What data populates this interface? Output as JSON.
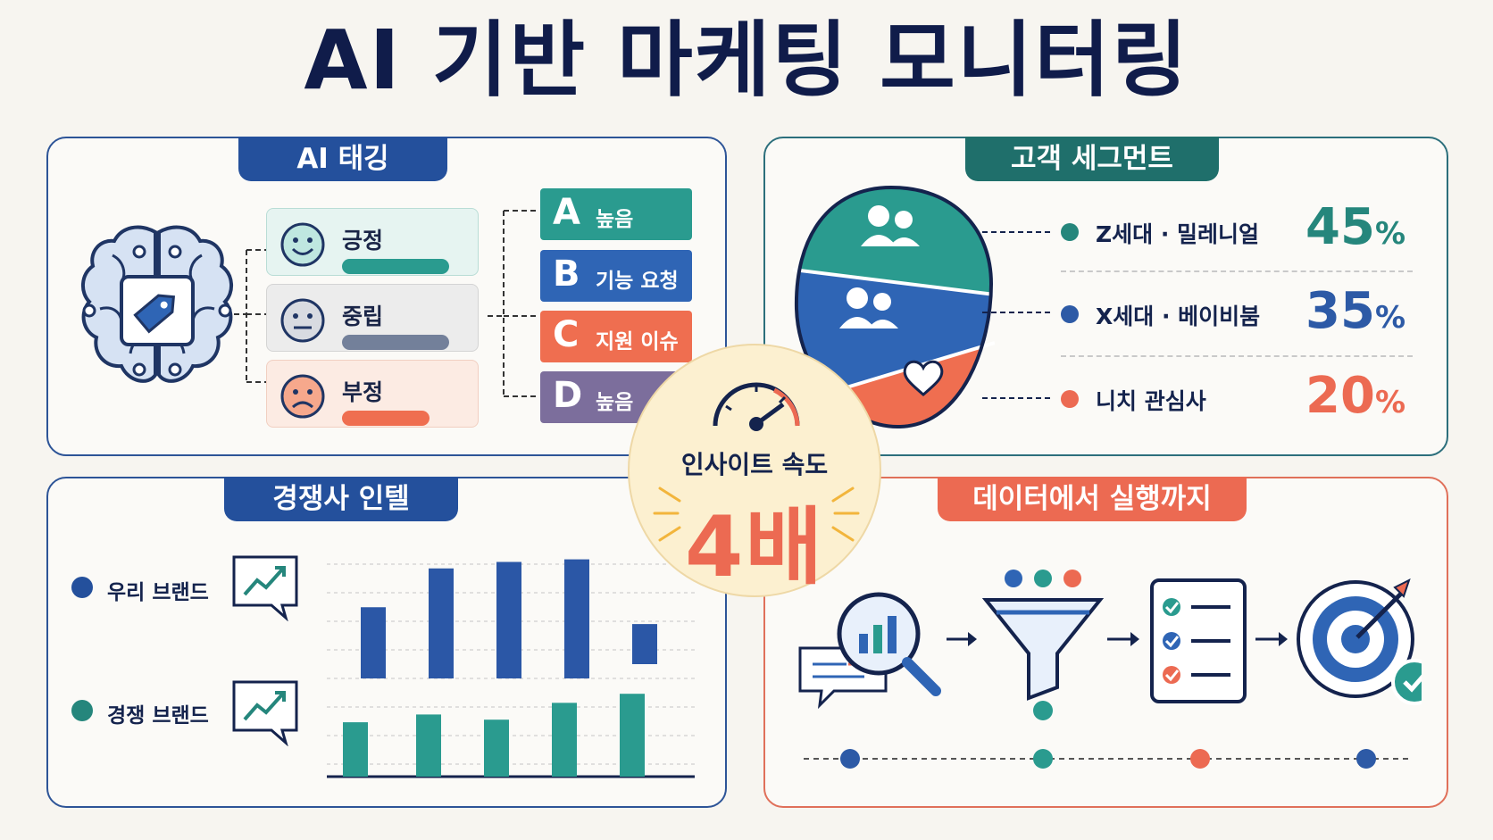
{
  "title": "AI 기반 마케팅 모니터링",
  "tagging": {
    "header": "AI 태깅",
    "sentiments": [
      {
        "label": "긍정",
        "color": "#2a9b8f"
      },
      {
        "label": "중립",
        "color": "#73809a"
      },
      {
        "label": "부정",
        "color": "#ef6e50"
      }
    ],
    "categories": [
      {
        "letter": "A",
        "text": "높음",
        "color": "#2a9b8f"
      },
      {
        "letter": "B",
        "text": "기능 요청",
        "color": "#2f65b5"
      },
      {
        "letter": "C",
        "text": "지원 이슈",
        "color": "#ef6e50"
      },
      {
        "letter": "D",
        "text": "높음",
        "color": "#7c6e9c"
      }
    ]
  },
  "segments": {
    "header": "고객 세그먼트",
    "items": [
      {
        "label": "Z세대 · 밀레니얼",
        "value": "45",
        "unit": "%",
        "color": "#25867c"
      },
      {
        "label": "X세대 · 베이비붐",
        "value": "35",
        "unit": "%",
        "color": "#2d5aa6"
      },
      {
        "label": "니치 관심사",
        "value": "20",
        "unit": "%",
        "color": "#ec6a52"
      }
    ]
  },
  "competitor": {
    "header": "경쟁사 인텔",
    "legend": [
      {
        "label": "우리 브랜드",
        "color": "#24509c"
      },
      {
        "label": "경쟁 브랜드",
        "color": "#25867c"
      }
    ]
  },
  "chart_data": {
    "type": "bar",
    "series": [
      {
        "name": "우리 브랜드",
        "values": [
          55,
          85,
          90,
          92,
          42
        ],
        "color": "#2b57a6"
      },
      {
        "name": "경쟁 브랜드",
        "values": [
          42,
          48,
          44,
          57,
          64
        ],
        "color": "#2a9b8f"
      }
    ],
    "note": "floating blue bars above a shared top of upper grid"
  },
  "center": {
    "label": "인사이트 속도",
    "value": "4배"
  },
  "pipeline": {
    "header": "데이터에서 실행까지",
    "steps": [
      "search-data-icon",
      "funnel-icon",
      "checklist-icon",
      "target-icon"
    ],
    "dot_colors": [
      "#2d5aa6",
      "#2a9b8f",
      "#ec6a52",
      "#2d5aa6"
    ]
  }
}
